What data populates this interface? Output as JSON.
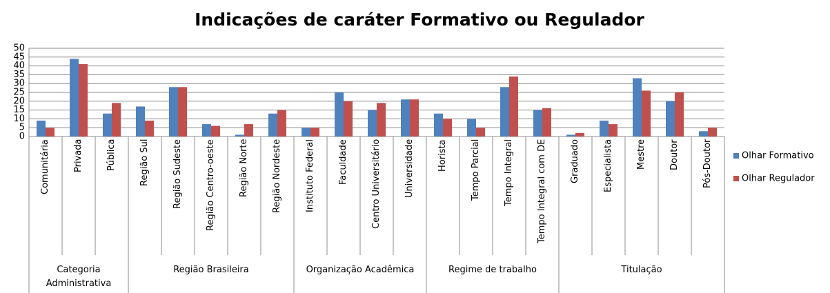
{
  "chart_data": {
    "type": "bar",
    "title": "Indicações de caráter Formativo ou Regulador",
    "category_groups": [
      {
        "name": "Categoria Administrativa",
        "categories": [
          "Comunitária",
          "Privada",
          "Pública"
        ]
      },
      {
        "name": "Região Brasileira",
        "categories": [
          "Região Sul",
          "Região Sudeste",
          "Região Centro-oeste",
          "Região Norte",
          "Região Nordeste"
        ]
      },
      {
        "name": "Organização Acadêmica",
        "categories": [
          "Instituto Federal",
          "Faculdade",
          "Centro Universitário",
          "Universidade"
        ]
      },
      {
        "name": "Regime de trabalho",
        "categories": [
          "Horista",
          "Tempo Parcial",
          "Tempo Integral",
          "Tempo Integral com DE"
        ]
      },
      {
        "name": "Titulação",
        "categories": [
          "Graduado",
          "Especialista",
          "Mestre",
          "Doutor",
          "Pós-Doutor"
        ]
      }
    ],
    "series": [
      {
        "name": "Olhar Formativo",
        "color": "#4f81bd",
        "values": [
          9,
          44,
          13,
          17,
          28,
          7,
          1,
          13,
          5,
          25,
          15,
          21,
          13,
          10,
          28,
          15,
          1,
          9,
          33,
          20,
          3
        ]
      },
      {
        "name": "Olhar Regulador",
        "color": "#c0504d",
        "values": [
          5,
          41,
          19,
          9,
          28,
          6,
          7,
          15,
          5,
          20,
          19,
          21,
          10,
          5,
          34,
          16,
          2,
          7,
          26,
          25,
          5
        ]
      }
    ],
    "ylim": [
      0,
      50
    ],
    "yticks": [
      0,
      5,
      10,
      15,
      20,
      25,
      30,
      35,
      40,
      45,
      50
    ],
    "grid": true,
    "legend": "right"
  }
}
